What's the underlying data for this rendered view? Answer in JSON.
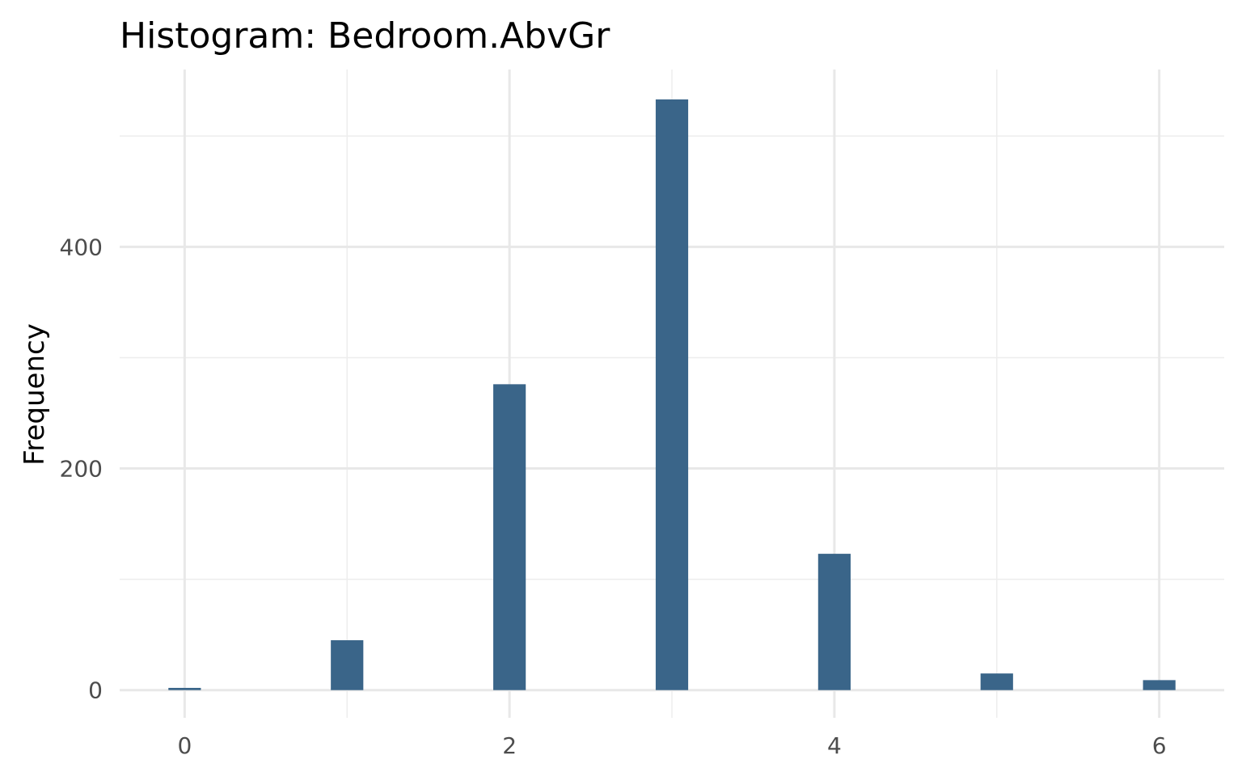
{
  "chart_data": {
    "type": "bar",
    "title": "Histogram:  Bedroom.AbvGr",
    "xlabel": "",
    "ylabel": "Frequency",
    "x": [
      0,
      1,
      2,
      3,
      4,
      5,
      6
    ],
    "values": [
      2,
      45,
      276,
      533,
      123,
      15,
      9
    ],
    "xlim": [
      -0.4,
      6.4
    ],
    "ylim": [
      -25,
      560
    ],
    "x_ticks": [
      0,
      2,
      4,
      6
    ],
    "x_tick_labels": [
      "0",
      "2",
      "4",
      "6"
    ],
    "y_ticks": [
      0,
      200,
      400
    ],
    "y_tick_labels": [
      "0",
      "200",
      "400"
    ],
    "bar_color": "#3a6589",
    "grid": true
  }
}
